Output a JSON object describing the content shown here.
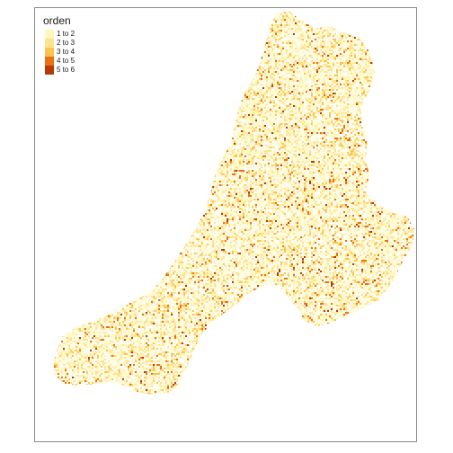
{
  "legend": {
    "title": "orden",
    "items": [
      {
        "label": "1 to 2",
        "color": "#FFF7BC"
      },
      {
        "label": "2 to 3",
        "color": "#FEE391"
      },
      {
        "label": "3 to 4",
        "color": "#FEC44F"
      },
      {
        "label": "4 to 5",
        "color": "#EC7014"
      },
      {
        "label": "5 to 6",
        "color": "#B63A06"
      }
    ]
  },
  "map": {
    "frame_color": "#8a8a8a",
    "background": "#ffffff",
    "fill_pattern": "stream order raster (dense speckle)",
    "class_weights": [
      0.5,
      0.28,
      0.13,
      0.07,
      0.02
    ]
  }
}
